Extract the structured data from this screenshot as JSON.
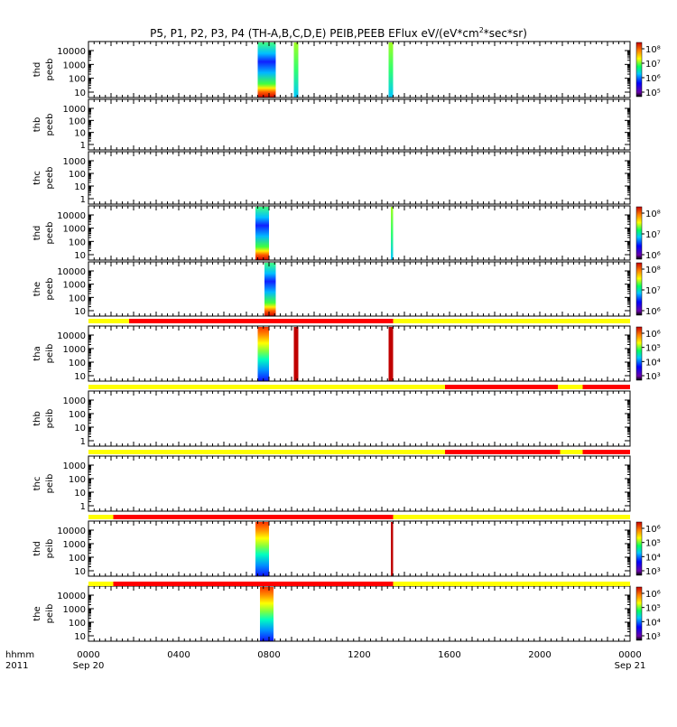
{
  "title": "P5, P1, P2, P3, P4 (TH-A,B,C,D,E) PEIB,PEEB EFlux eV/(eV*cm²*sec*sr)",
  "title_parts": {
    "pre": "P5, P1, P2, P3, P4 (TH-A,B,C,D,E) PEIB,PEEB EFlux eV/(eV*cm",
    "sup": "2",
    "post": "*sec*sr)"
  },
  "colors": {
    "mode_yellow": "#ffff00",
    "mode_red": "#ff0000"
  },
  "chart_data": {
    "type": "heatmap",
    "x_axis": {
      "range_hours": [
        0,
        24
      ],
      "ticks": [
        {
          "hour": 0,
          "label": "0000"
        },
        {
          "hour": 4,
          "label": "0400"
        },
        {
          "hour": 8,
          "label": "0800"
        },
        {
          "hour": 12,
          "label": "1200"
        },
        {
          "hour": 16,
          "label": "1600"
        },
        {
          "hour": 20,
          "label": "2000"
        },
        {
          "hour": 24,
          "label": "0000"
        }
      ],
      "date_labels": [
        {
          "hour": 0,
          "label": "Sep 20"
        },
        {
          "hour": 24,
          "label": "Sep 21"
        }
      ],
      "corner_labels": [
        "hhmm",
        "2011"
      ]
    },
    "panels": [
      {
        "probe": "thd",
        "product": "peeb",
        "ylabels": [
          "10000",
          "1000",
          "100",
          "10"
        ],
        "colorbar": [
          "10⁸",
          "10⁷",
          "10⁶",
          "10⁵"
        ],
        "intervals": [
          [
            7.5,
            8.3
          ],
          [
            9.1,
            9.3
          ],
          [
            13.3,
            13.5
          ]
        ]
      },
      {
        "probe": "thb",
        "product": "peeb",
        "ylabels": [
          "1000",
          "100",
          "10",
          "1"
        ],
        "colorbar": [],
        "intervals": []
      },
      {
        "probe": "thc",
        "product": "peeb",
        "ylabels": [
          "1000",
          "100",
          "10",
          "1"
        ],
        "colorbar": [],
        "intervals": []
      },
      {
        "probe": "thd",
        "product": "peeb",
        "ylabels": [
          "10000",
          "1000",
          "100",
          "10"
        ],
        "colorbar": [
          "10⁸",
          "10⁷",
          "10⁶"
        ],
        "intervals": [
          [
            7.4,
            8.0
          ],
          [
            13.4,
            13.5
          ]
        ]
      },
      {
        "probe": "the",
        "product": "peeb",
        "ylabels": [
          "10000",
          "1000",
          "100",
          "10"
        ],
        "colorbar": [
          "10⁸",
          "10⁷",
          "10⁶"
        ],
        "intervals": [
          [
            7.8,
            8.3
          ]
        ]
      },
      {
        "probe": "tha",
        "product": "peib",
        "ylabels": [
          "10000",
          "1000",
          "100",
          "10"
        ],
        "colorbar": [
          "10⁶",
          "10⁵",
          "10⁴",
          "10³"
        ],
        "intervals": [
          [
            7.5,
            8.0
          ],
          [
            9.1,
            9.3
          ],
          [
            13.3,
            13.5
          ]
        ]
      },
      {
        "probe": "thb",
        "product": "peib",
        "ylabels": [
          "1000",
          "100",
          "10",
          "1"
        ],
        "colorbar": [],
        "intervals": []
      },
      {
        "probe": "thc",
        "product": "peib",
        "ylabels": [
          "1000",
          "100",
          "10",
          "1"
        ],
        "colorbar": [],
        "intervals": []
      },
      {
        "probe": "thd",
        "product": "peib",
        "ylabels": [
          "10000",
          "1000",
          "100",
          "10"
        ],
        "colorbar": [
          "10⁶",
          "10⁵",
          "10⁴",
          "10³"
        ],
        "intervals": [
          [
            7.4,
            8.0
          ],
          [
            13.4,
            13.5
          ]
        ]
      },
      {
        "probe": "the",
        "product": "peib",
        "ylabels": [
          "10000",
          "1000",
          "100",
          "10"
        ],
        "colorbar": [
          "10⁶",
          "10⁵",
          "10⁴",
          "10³"
        ],
        "intervals": [
          [
            7.6,
            8.2
          ]
        ]
      }
    ],
    "mode_bars": [
      {
        "after_panel": 4,
        "segments": [
          [
            "yellow",
            0,
            1.8
          ],
          [
            "red",
            1.8,
            13.5
          ],
          [
            "yellow",
            13.5,
            24
          ]
        ]
      },
      {
        "after_panel": 5,
        "segments": [
          [
            "yellow",
            0,
            15.8
          ],
          [
            "red",
            15.8,
            20.8
          ],
          [
            "yellow",
            20.8,
            21.9
          ],
          [
            "red",
            21.9,
            24
          ]
        ]
      },
      {
        "after_panel": 6,
        "segments": [
          [
            "yellow",
            0,
            15.8
          ],
          [
            "red",
            15.8,
            20.9
          ],
          [
            "yellow",
            20.9,
            21.9
          ],
          [
            "red",
            21.9,
            24
          ]
        ]
      },
      {
        "after_panel": 7,
        "segments": [
          [
            "yellow",
            0,
            1.1
          ],
          [
            "red",
            1.1,
            13.5
          ],
          [
            "yellow",
            13.5,
            24
          ]
        ]
      },
      {
        "after_panel": 8,
        "segments": [
          [
            "yellow",
            0,
            1.1
          ],
          [
            "red",
            1.1,
            13.5
          ],
          [
            "yellow",
            13.5,
            24
          ]
        ]
      }
    ]
  }
}
